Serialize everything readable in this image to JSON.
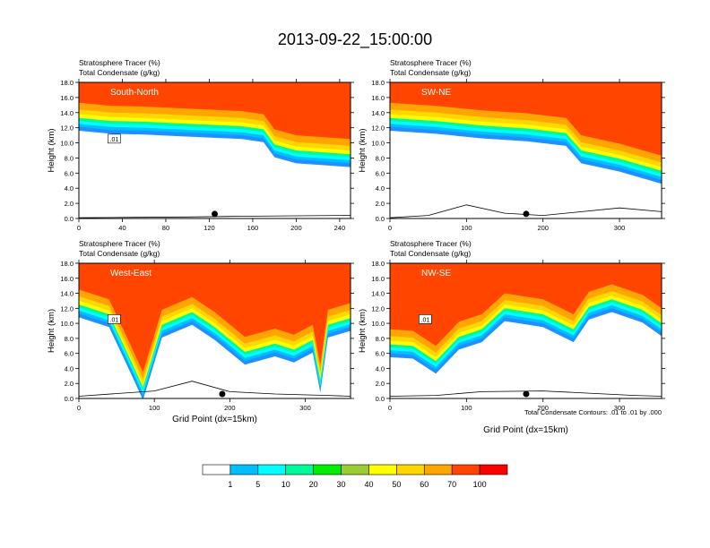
{
  "figure": {
    "title": "2013-09-22_15:00:00",
    "contour_note": "Total Condensate Contours: .01 to .01 by .000"
  },
  "colorbar": {
    "labels": [
      "1",
      "5",
      "10",
      "20",
      "30",
      "40",
      "50",
      "60",
      "70",
      "100"
    ],
    "colors": [
      "#ffffff",
      "#1e90ff",
      "#00bfff",
      "#00ffff",
      "#00fa9a",
      "#00ee00",
      "#9acd32",
      "#ffff00",
      "#ffd700",
      "#ffa500",
      "#ff4500",
      "#ff0000"
    ]
  },
  "chart_data": [
    {
      "type": "heatmap",
      "title": "South-North",
      "subtitle_lines": [
        "Stratosphere Tracer   (%)",
        "Total Condensate   (g/kg)"
      ],
      "ylabel": "Height (km)",
      "xlabel": "",
      "xlim": [
        0,
        250
      ],
      "ylim": [
        0,
        18
      ],
      "xticks": [
        "0",
        "40",
        "80",
        "120",
        "160",
        "200",
        "240"
      ],
      "yticks": [
        "0.0",
        "2.0",
        "4.0",
        "6.0",
        "8.0",
        "10.0",
        "12.0",
        "14.0",
        "16.0",
        "18.0"
      ],
      "tropopause_km": [
        [
          0,
          15.3
        ],
        [
          30,
          14.9
        ],
        [
          60,
          14.8
        ],
        [
          90,
          14.6
        ],
        [
          120,
          14.4
        ],
        [
          150,
          14.2
        ],
        [
          170,
          13.8
        ],
        [
          180,
          11.8
        ],
        [
          200,
          11.0
        ],
        [
          230,
          10.7
        ],
        [
          250,
          10.5
        ]
      ],
      "contour_label": ".01",
      "marker_x": 125,
      "terrain_km": [
        [
          0,
          0.1
        ],
        [
          50,
          0.15
        ],
        [
          100,
          0.2
        ],
        [
          150,
          0.3
        ],
        [
          200,
          0.35
        ],
        [
          250,
          0.4
        ]
      ]
    },
    {
      "type": "heatmap",
      "title": "SW-NE",
      "subtitle_lines": [
        "Stratosphere Tracer   (%)",
        "Total Condensate   (g/kg)"
      ],
      "ylabel": "Height (km)",
      "xlabel": "",
      "xlim": [
        0,
        355
      ],
      "ylim": [
        0,
        18
      ],
      "xticks": [
        "0",
        "100",
        "200",
        "300"
      ],
      "yticks": [
        "0.0",
        "2.0",
        "4.0",
        "6.0",
        "8.0",
        "10.0",
        "12.0",
        "14.0",
        "16.0",
        "18.0"
      ],
      "tropopause_km": [
        [
          0,
          15.3
        ],
        [
          60,
          14.9
        ],
        [
          120,
          14.3
        ],
        [
          180,
          13.9
        ],
        [
          230,
          13.3
        ],
        [
          250,
          11.0
        ],
        [
          300,
          9.9
        ],
        [
          355,
          8.3
        ]
      ],
      "contour_label": "",
      "marker_x": 178,
      "terrain_km": [
        [
          0,
          0.1
        ],
        [
          50,
          0.4
        ],
        [
          100,
          1.8
        ],
        [
          150,
          0.7
        ],
        [
          200,
          0.4
        ],
        [
          300,
          1.4
        ],
        [
          355,
          0.9
        ]
      ]
    },
    {
      "type": "heatmap",
      "title": "West-East",
      "subtitle_lines": [
        "Stratosphere Tracer   (%)",
        "Total Condensate   (g/kg)"
      ],
      "ylabel": "Height (km)",
      "xlabel": "Grid Point (dx=15km)",
      "xlim": [
        0,
        360
      ],
      "ylim": [
        0,
        18
      ],
      "xticks": [
        "0",
        "100",
        "200",
        "300"
      ],
      "yticks": [
        "0.0",
        "2.0",
        "4.0",
        "6.0",
        "8.0",
        "10.0",
        "12.0",
        "14.0",
        "16.0",
        "18.0"
      ],
      "tropopause_km": [
        [
          0,
          14.5
        ],
        [
          40,
          13.2
        ],
        [
          70,
          6.8
        ],
        [
          85,
          3.5
        ],
        [
          110,
          11.8
        ],
        [
          150,
          13.5
        ],
        [
          180,
          11.5
        ],
        [
          220,
          8.2
        ],
        [
          260,
          9.3
        ],
        [
          285,
          8.5
        ],
        [
          310,
          9.8
        ],
        [
          320,
          4.5
        ],
        [
          330,
          11.8
        ],
        [
          360,
          12.7
        ]
      ],
      "contour_label": ".01",
      "marker_x": 190,
      "terrain_km": [
        [
          0,
          0.3
        ],
        [
          100,
          1.0
        ],
        [
          150,
          2.3
        ],
        [
          200,
          0.9
        ],
        [
          260,
          0.6
        ],
        [
          330,
          0.4
        ],
        [
          360,
          0.3
        ]
      ]
    },
    {
      "type": "heatmap",
      "title": "NW-SE",
      "subtitle_lines": [
        "Stratosphere Tracer   (%)",
        "Total Condensate   (g/kg)"
      ],
      "ylabel": "Height (km)",
      "xlabel": "Grid Point (dx=15km)",
      "xlim": [
        0,
        355
      ],
      "ylim": [
        0,
        18
      ],
      "xticks": [
        "0",
        "100",
        "200",
        "300"
      ],
      "yticks": [
        "0.0",
        "2.0",
        "4.0",
        "6.0",
        "8.0",
        "10.0",
        "12.0",
        "14.0",
        "16.0",
        "18.0"
      ],
      "tropopause_km": [
        [
          0,
          9.2
        ],
        [
          30,
          9.0
        ],
        [
          60,
          7.0
        ],
        [
          90,
          10.2
        ],
        [
          120,
          11.2
        ],
        [
          150,
          14.0
        ],
        [
          200,
          13.2
        ],
        [
          240,
          11.2
        ],
        [
          260,
          14.2
        ],
        [
          290,
          15.2
        ],
        [
          330,
          13.8
        ],
        [
          355,
          12.0
        ]
      ],
      "contour_label": ".01",
      "marker_x": 178,
      "terrain_km": [
        [
          0,
          0.3
        ],
        [
          60,
          0.4
        ],
        [
          120,
          0.9
        ],
        [
          200,
          1.0
        ],
        [
          260,
          0.7
        ],
        [
          320,
          0.4
        ],
        [
          355,
          0.3
        ]
      ]
    }
  ]
}
